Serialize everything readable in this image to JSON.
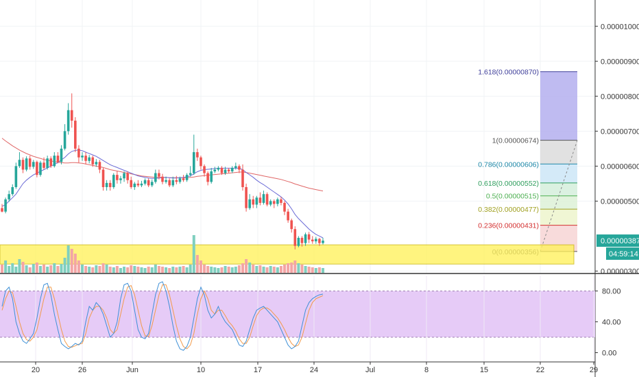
{
  "chart_data": [
    {
      "type": "candlestick",
      "y_ticks": [
        "0.00001000",
        "0.00000900",
        "0.00000800",
        "0.00000700",
        "0.00000600",
        "0.00000500",
        "0.00000300"
      ],
      "y_tick_values": [
        1000,
        900,
        800,
        700,
        600,
        500,
        300
      ],
      "ylim": [
        295,
        1075
      ],
      "last_price": "0.00000387",
      "countdown": "04:59:14",
      "x_ticks": [
        "20",
        "26",
        "Jun",
        "10",
        "17",
        "24",
        "Jul",
        "8",
        "15",
        "22",
        "29"
      ],
      "fibonacci": [
        {
          "label": "1.618(0.00000870)",
          "value": 870,
          "color": "#3f3f9a"
        },
        {
          "label": "1(0.00000674)",
          "value": 674,
          "color": "#555555"
        },
        {
          "label": "0.786(0.00000606)",
          "value": 606,
          "color": "#1e88a8"
        },
        {
          "label": "0.618(0.00000552)",
          "value": 552,
          "color": "#2e9d5c"
        },
        {
          "label": "0.5(0.00000515)",
          "value": 515,
          "color": "#4caf50"
        },
        {
          "label": "0.382(0.00000477)",
          "value": 477,
          "color": "#a0a020"
        },
        {
          "label": "0.236(0.00000431)",
          "value": 431,
          "color": "#d32f2f"
        },
        {
          "label": "0(0.00000356)",
          "value": 356,
          "color": "#555555"
        }
      ],
      "candles": [
        [
          480,
          470,
          492,
          468
        ],
        [
          470,
          505,
          510,
          465
        ],
        [
          505,
          520,
          530,
          498
        ],
        [
          520,
          540,
          548,
          515
        ],
        [
          540,
          600,
          610,
          535
        ],
        [
          600,
          618,
          640,
          595
        ],
        [
          618,
          590,
          625,
          580
        ],
        [
          590,
          622,
          628,
          585
        ],
        [
          622,
          598,
          630,
          590
        ],
        [
          598,
          612,
          618,
          592
        ],
        [
          612,
          575,
          616,
          568
        ],
        [
          575,
          610,
          615,
          570
        ],
        [
          610,
          595,
          625,
          590
        ],
        [
          595,
          622,
          630,
          590
        ],
        [
          622,
          600,
          628,
          595
        ],
        [
          600,
          630,
          640,
          596
        ],
        [
          630,
          612,
          640,
          608
        ],
        [
          612,
          650,
          660,
          605
        ],
        [
          650,
          700,
          720,
          645
        ],
        [
          700,
          760,
          780,
          690
        ],
        [
          760,
          730,
          808,
          710
        ],
        [
          730,
          650,
          740,
          640
        ],
        [
          650,
          625,
          660,
          610
        ],
        [
          625,
          630,
          640,
          615
        ],
        [
          630,
          615,
          640,
          605
        ],
        [
          615,
          625,
          632,
          608
        ],
        [
          625,
          605,
          630,
          598
        ],
        [
          605,
          612,
          620,
          598
        ],
        [
          612,
          590,
          618,
          580
        ],
        [
          590,
          540,
          595,
          530
        ],
        [
          540,
          552,
          560,
          530
        ],
        [
          552,
          540,
          560,
          530
        ],
        [
          540,
          575,
          580,
          535
        ],
        [
          575,
          560,
          585,
          550
        ],
        [
          560,
          565,
          572,
          550
        ],
        [
          565,
          580,
          585,
          555
        ],
        [
          580,
          560,
          585,
          550
        ],
        [
          560,
          540,
          570,
          535
        ],
        [
          540,
          550,
          555,
          532
        ],
        [
          550,
          545,
          560,
          540
        ],
        [
          545,
          550,
          558,
          540
        ],
        [
          550,
          560,
          565,
          545
        ],
        [
          560,
          545,
          565,
          540
        ],
        [
          545,
          555,
          562,
          540
        ],
        [
          555,
          580,
          590,
          550
        ],
        [
          580,
          570,
          590,
          562
        ],
        [
          570,
          555,
          578,
          548
        ],
        [
          555,
          560,
          570,
          550
        ],
        [
          560,
          545,
          565,
          540
        ],
        [
          545,
          560,
          570,
          540
        ],
        [
          560,
          555,
          572,
          548
        ],
        [
          555,
          565,
          570,
          550
        ],
        [
          565,
          560,
          575,
          555
        ],
        [
          560,
          575,
          580,
          555
        ],
        [
          575,
          580,
          600,
          570
        ],
        [
          580,
          640,
          690,
          575
        ],
        [
          640,
          625,
          650,
          615
        ],
        [
          625,
          600,
          630,
          590
        ],
        [
          600,
          580,
          605,
          570
        ],
        [
          580,
          555,
          585,
          545
        ],
        [
          555,
          585,
          595,
          550
        ],
        [
          585,
          590,
          598,
          580
        ],
        [
          590,
          595,
          600,
          585
        ],
        [
          595,
          580,
          600,
          575
        ],
        [
          580,
          590,
          598,
          575
        ],
        [
          590,
          585,
          595,
          580
        ],
        [
          585,
          595,
          600,
          580
        ],
        [
          595,
          600,
          610,
          590
        ],
        [
          600,
          590,
          605,
          580
        ],
        [
          590,
          540,
          605,
          530
        ],
        [
          540,
          480,
          550,
          470
        ],
        [
          480,
          505,
          520,
          475
        ],
        [
          505,
          490,
          515,
          480
        ],
        [
          490,
          510,
          515,
          480
        ],
        [
          510,
          495,
          525,
          488
        ],
        [
          495,
          520,
          530,
          490
        ],
        [
          520,
          490,
          525,
          485
        ],
        [
          490,
          500,
          505,
          485
        ],
        [
          500,
          492,
          505,
          480
        ],
        [
          492,
          505,
          510,
          485
        ],
        [
          505,
          495,
          512,
          488
        ],
        [
          495,
          470,
          500,
          460
        ],
        [
          470,
          445,
          478,
          438
        ],
        [
          445,
          420,
          450,
          410
        ],
        [
          420,
          372,
          428,
          362
        ],
        [
          372,
          395,
          400,
          368
        ],
        [
          395,
          380,
          400,
          370
        ],
        [
          380,
          405,
          410,
          372
        ],
        [
          405,
          390,
          412,
          380
        ],
        [
          390,
          385,
          400,
          378
        ],
        [
          385,
          392,
          398,
          378
        ],
        [
          392,
          380,
          395,
          372
        ],
        [
          380,
          387,
          395,
          376
        ]
      ],
      "ema_fast": [
        485,
        490,
        500,
        510,
        520,
        535,
        550,
        560,
        568,
        575,
        580,
        585,
        590,
        595,
        600,
        605,
        610,
        618,
        625,
        635,
        642,
        645,
        646,
        644,
        640,
        636,
        632,
        628,
        622,
        616,
        610,
        604,
        600,
        596,
        592,
        588,
        584,
        580,
        576,
        572,
        570,
        568,
        566,
        565,
        565,
        566,
        567,
        568,
        567,
        566,
        566,
        567,
        568,
        570,
        572,
        578,
        584,
        588,
        590,
        591,
        592,
        593,
        594,
        594,
        594,
        594,
        594,
        594,
        594,
        590,
        582,
        575,
        568,
        560,
        553,
        547,
        540,
        533,
        526,
        519,
        512,
        503,
        492,
        478,
        462,
        450,
        440,
        430,
        420,
        412,
        405,
        400,
        395
      ],
      "ema_slow": [
        680,
        672,
        665,
        658,
        652,
        646,
        641,
        636,
        632,
        628,
        625,
        622,
        619,
        617,
        615,
        613,
        611,
        610,
        609,
        609,
        610,
        610,
        609,
        608,
        606,
        604,
        602,
        600,
        598,
        596,
        593,
        590,
        588,
        586,
        584,
        582,
        580,
        578,
        576,
        574,
        572,
        571,
        570,
        569,
        568,
        568,
        568,
        568,
        567,
        567,
        567,
        567,
        567,
        567,
        568,
        569,
        571,
        572,
        573,
        574,
        575,
        576,
        577,
        578,
        579,
        580,
        581,
        582,
        583,
        583,
        582,
        580,
        578,
        576,
        574,
        572,
        570,
        568,
        566,
        564,
        562,
        559,
        556,
        553,
        549,
        546,
        543,
        540,
        537,
        535,
        533,
        531,
        529
      ],
      "volume": [
        12,
        18,
        10,
        14,
        9,
        20,
        16,
        11,
        8,
        13,
        15,
        10,
        12,
        9,
        11,
        14,
        10,
        13,
        22,
        40,
        35,
        28,
        18,
        12,
        10,
        9,
        8,
        11,
        10,
        14,
        12,
        9,
        8,
        10,
        7,
        9,
        8,
        11,
        10,
        9,
        8,
        7,
        9,
        8,
        12,
        10,
        9,
        8,
        7,
        9,
        8,
        9,
        10,
        8,
        12,
        55,
        26,
        18,
        12,
        10,
        9,
        8,
        7,
        8,
        10,
        9,
        8,
        9,
        11,
        14,
        20,
        15,
        12,
        10,
        11,
        9,
        8,
        10,
        9,
        8,
        10,
        12,
        14,
        15,
        18,
        14,
        12,
        10,
        9,
        8,
        7,
        8,
        7
      ],
      "volume_up": [
        0,
        1,
        1,
        1,
        1,
        1,
        0,
        1,
        0,
        1,
        0,
        1,
        0,
        1,
        0,
        1,
        0,
        1,
        1,
        1,
        0,
        0,
        0,
        1,
        0,
        1,
        0,
        1,
        0,
        0,
        1,
        0,
        1,
        0,
        1,
        1,
        0,
        0,
        1,
        0,
        1,
        1,
        0,
        1,
        1,
        0,
        0,
        1,
        0,
        1,
        0,
        1,
        0,
        1,
        1,
        1,
        0,
        0,
        0,
        0,
        1,
        1,
        1,
        0,
        1,
        0,
        1,
        1,
        0,
        0,
        0,
        1,
        0,
        1,
        0,
        1,
        0,
        1,
        0,
        1,
        0,
        0,
        0,
        0,
        0,
        1,
        0,
        1,
        0,
        0,
        1,
        0,
        1
      ]
    },
    {
      "type": "line",
      "indicator": "stochastic",
      "y_ticks": [
        "80.00",
        "40.00",
        "0.00"
      ],
      "y_tick_values": [
        80,
        40,
        0
      ],
      "ylim": [
        -12,
        100
      ],
      "band": [
        20,
        80
      ],
      "k": [
        60,
        80,
        85,
        70,
        40,
        25,
        15,
        12,
        18,
        25,
        45,
        70,
        88,
        90,
        75,
        50,
        30,
        12,
        8,
        5,
        8,
        12,
        10,
        15,
        40,
        60,
        55,
        65,
        60,
        50,
        35,
        20,
        25,
        40,
        70,
        88,
        90,
        80,
        55,
        30,
        20,
        18,
        25,
        50,
        75,
        90,
        92,
        80,
        60,
        35,
        15,
        5,
        3,
        8,
        20,
        45,
        70,
        85,
        75,
        55,
        45,
        50,
        60,
        48,
        40,
        35,
        30,
        20,
        10,
        8,
        15,
        30,
        45,
        55,
        58,
        60,
        55,
        50,
        45,
        40,
        30,
        20,
        10,
        5,
        8,
        15,
        35,
        55,
        65,
        70,
        73,
        75,
        76
      ],
      "d": [
        55,
        70,
        80,
        78,
        60,
        40,
        25,
        17,
        15,
        20,
        30,
        50,
        70,
        85,
        85,
        70,
        50,
        30,
        15,
        8,
        7,
        9,
        11,
        12,
        25,
        45,
        55,
        60,
        60,
        55,
        45,
        30,
        25,
        30,
        50,
        70,
        85,
        87,
        75,
        55,
        35,
        22,
        21,
        35,
        55,
        75,
        88,
        88,
        75,
        55,
        35,
        18,
        8,
        5,
        10,
        25,
        50,
        70,
        80,
        70,
        55,
        50,
        55,
        55,
        48,
        40,
        35,
        28,
        18,
        12,
        12,
        20,
        35,
        48,
        55,
        58,
        58,
        55,
        50,
        45,
        38,
        30,
        20,
        12,
        8,
        10,
        20,
        38,
        55,
        65,
        70,
        72,
        74
      ]
    }
  ]
}
